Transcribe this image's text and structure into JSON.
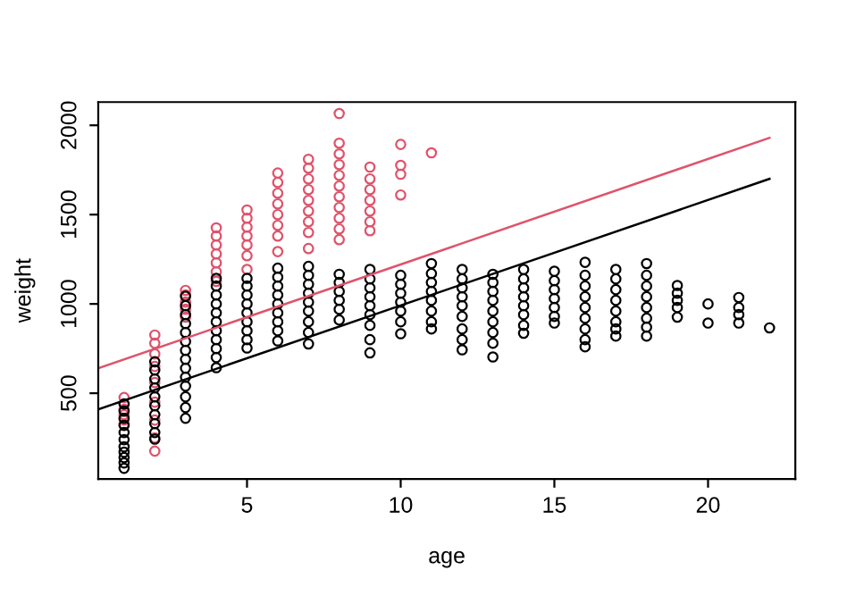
{
  "chart_data": {
    "type": "scatter",
    "xlabel": "age",
    "ylabel": "weight",
    "xlim": [
      0.16,
      22.84
    ],
    "ylim": [
      20,
      2130
    ],
    "xticks": [
      5,
      10,
      15,
      20
    ],
    "yticks": [
      500,
      1000,
      1500,
      2000
    ],
    "grid": false,
    "legend": false,
    "series": [
      {
        "marker": "circle",
        "color": "#df536b",
        "x": [
          1,
          1,
          1,
          1,
          1,
          1,
          2,
          2,
          2,
          2,
          2,
          2,
          2,
          2,
          2,
          3,
          3,
          3,
          3,
          3,
          4,
          4,
          4,
          4,
          4,
          4,
          4,
          5,
          5,
          5,
          5,
          5,
          5,
          5,
          6,
          6,
          6,
          6,
          6,
          6,
          6,
          6,
          7,
          7,
          7,
          7,
          7,
          7,
          7,
          7,
          7,
          8,
          8,
          8,
          8,
          8,
          8,
          8,
          8,
          8,
          8,
          8,
          9,
          9,
          9,
          9,
          9,
          9,
          9,
          10,
          10,
          10,
          10,
          11
        ],
        "values": [
          476,
          440,
          410,
          380,
          350,
          326,
          826,
          780,
          720,
          650,
          560,
          450,
          350,
          250,
          176,
          1076,
          1050,
          1010,
          970,
          926,
          1426,
          1380,
          1330,
          1280,
          1230,
          1180,
          1126,
          1526,
          1480,
          1430,
          1380,
          1330,
          1270,
          1193,
          1733,
          1680,
          1620,
          1560,
          1500,
          1440,
          1380,
          1293,
          1810,
          1760,
          1700,
          1640,
          1580,
          1520,
          1460,
          1400,
          1310,
          2066,
          1900,
          1840,
          1780,
          1720,
          1660,
          1600,
          1540,
          1480,
          1420,
          1360,
          1766,
          1700,
          1640,
          1580,
          1520,
          1460,
          1410,
          1893,
          1776,
          1726,
          1610,
          1846
        ]
      },
      {
        "marker": "circle",
        "color": "#000000",
        "x": [
          1,
          1,
          1,
          1,
          1,
          1,
          1,
          1,
          1,
          1,
          1,
          2,
          2,
          2,
          2,
          2,
          2,
          2,
          2,
          2,
          2,
          3,
          3,
          3,
          3,
          3,
          3,
          3,
          3,
          3,
          3,
          3,
          3,
          3,
          3,
          4,
          4,
          4,
          4,
          4,
          4,
          4,
          4,
          4,
          4,
          4,
          5,
          5,
          5,
          5,
          5,
          5,
          5,
          5,
          5,
          6,
          6,
          6,
          6,
          6,
          6,
          6,
          6,
          6,
          7,
          7,
          7,
          7,
          7,
          7,
          7,
          7,
          7,
          8,
          8,
          8,
          8,
          8,
          8,
          9,
          9,
          9,
          9,
          9,
          9,
          9,
          9,
          9,
          10,
          10,
          10,
          10,
          10,
          10,
          10,
          11,
          11,
          11,
          11,
          11,
          11,
          11,
          11,
          12,
          12,
          12,
          12,
          12,
          12,
          12,
          12,
          12,
          13,
          13,
          13,
          13,
          13,
          13,
          13,
          13,
          13,
          14,
          14,
          14,
          14,
          14,
          14,
          14,
          14,
          15,
          15,
          15,
          15,
          15,
          15,
          15,
          16,
          16,
          16,
          16,
          16,
          16,
          16,
          16,
          16,
          17,
          17,
          17,
          17,
          17,
          17,
          17,
          17,
          18,
          18,
          18,
          18,
          18,
          18,
          18,
          18,
          19,
          19,
          19,
          19,
          19,
          20,
          20,
          21,
          21,
          21,
          21,
          22
        ],
        "values": [
          440,
          400,
          360,
          320,
          280,
          240,
          200,
          170,
          140,
          110,
          80,
          676,
          630,
          580,
          530,
          480,
          430,
          380,
          330,
          280,
          243,
          1043,
          990,
          940,
          890,
          840,
          790,
          740,
          690,
          640,
          590,
          540,
          480,
          420,
          360,
          1143,
          1100,
          1050,
          1000,
          950,
          900,
          850,
          800,
          750,
          700,
          643,
          1143,
          1100,
          1050,
          1000,
          950,
          900,
          850,
          800,
          753,
          1200,
          1150,
          1100,
          1050,
          1000,
          950,
          900,
          850,
          793,
          1210,
          1160,
          1110,
          1060,
          1010,
          960,
          900,
          840,
          776,
          1166,
          1120,
          1070,
          1020,
          970,
          910,
          1193,
          1140,
          1090,
          1040,
          990,
          940,
          880,
          800,
          726,
          1160,
          1110,
          1060,
          1010,
          960,
          900,
          833,
          1226,
          1170,
          1120,
          1070,
          1020,
          960,
          900,
          860,
          1193,
          1140,
          1090,
          1040,
          990,
          930,
          860,
          800,
          743,
          1166,
          1120,
          1070,
          1020,
          960,
          900,
          840,
          780,
          703,
          1193,
          1140,
          1090,
          1040,
          990,
          940,
          880,
          836,
          1183,
          1130,
          1080,
          1030,
          980,
          930,
          893,
          1233,
          1160,
          1100,
          1040,
          980,
          920,
          860,
          800,
          760,
          1193,
          1140,
          1080,
          1020,
          960,
          900,
          860,
          820,
          1226,
          1160,
          1100,
          1040,
          980,
          920,
          870,
          820,
          1103,
          1060,
          1020,
          980,
          926,
          1000,
          893,
          1036,
          980,
          940,
          893,
          866
        ]
      },
      {
        "type": "line",
        "marker": "none",
        "color": "#df536b",
        "line_style": "solid",
        "x": [
          0.16,
          22
        ],
        "values": [
          640,
          1930
        ]
      },
      {
        "type": "line",
        "marker": "none",
        "color": "#000000",
        "line_style": "solid",
        "x": [
          0.16,
          22
        ],
        "values": [
          410,
          1700
        ]
      }
    ]
  }
}
